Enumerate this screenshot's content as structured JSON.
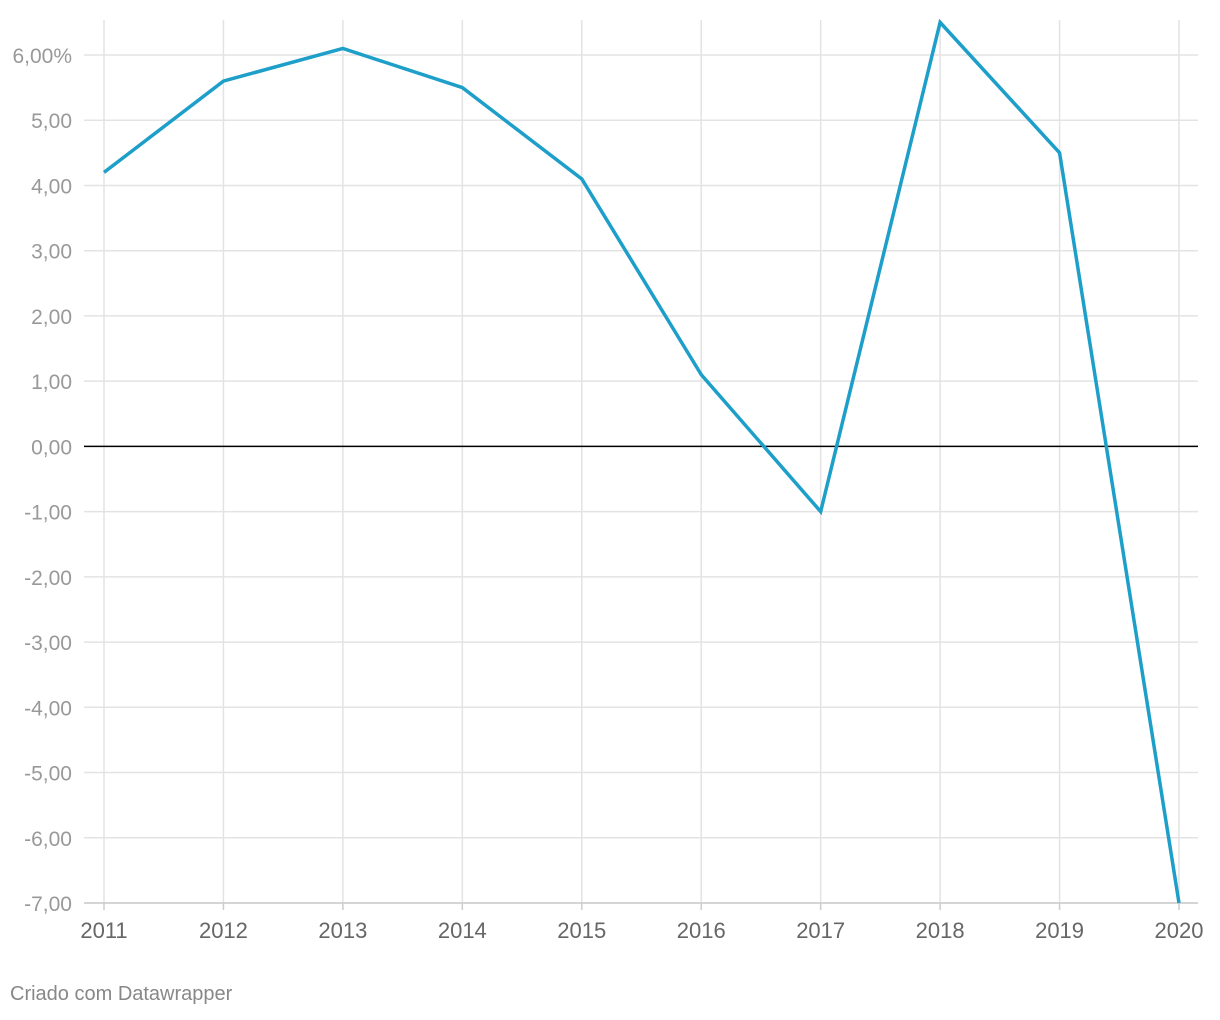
{
  "chart_data": {
    "type": "line",
    "x": [
      "2011",
      "2012",
      "2013",
      "2014",
      "2015",
      "2016",
      "2017",
      "2018",
      "2019",
      "2020"
    ],
    "series": [
      {
        "values": [
          4.2,
          5.6,
          6.1,
          5.5,
          4.1,
          1.1,
          -1.0,
          6.5,
          4.5,
          -7.0
        ],
        "color": "#1d9fc9"
      }
    ],
    "yticks": [
      6,
      5,
      4,
      3,
      2,
      1,
      0,
      -1,
      -2,
      -3,
      -4,
      -5,
      -6,
      -7
    ],
    "ytick_labels": [
      "6,00%",
      "5,00",
      "4,00",
      "3,00",
      "2,00",
      "1,00",
      "0,00",
      "-1,00",
      "-2,00",
      "-3,00",
      "-4,00",
      "-5,00",
      "-6,00",
      "-7,00"
    ],
    "ylim": [
      -7,
      6.5
    ],
    "grid": true,
    "zero_line_color": "#000000",
    "grid_color": "#e3e3e3"
  },
  "footer": "Criado com Datawrapper"
}
